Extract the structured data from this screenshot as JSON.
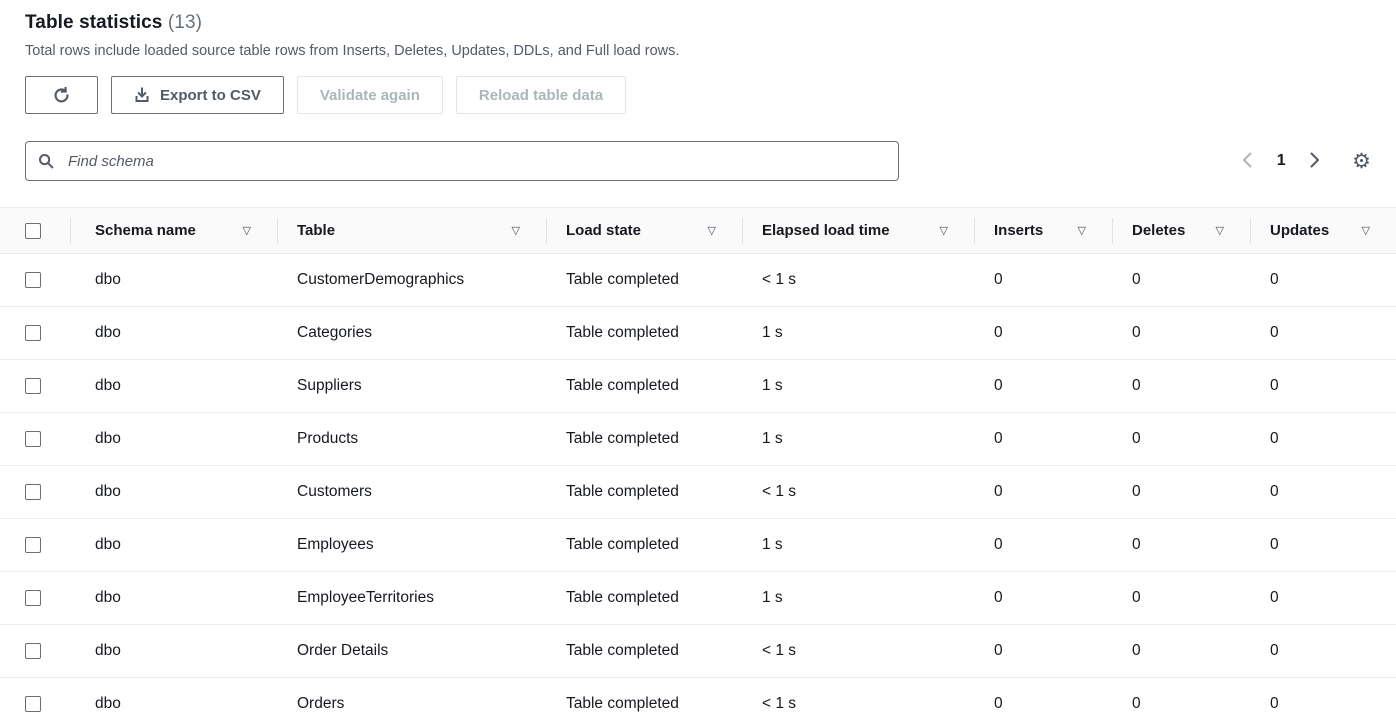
{
  "header": {
    "title": "Table statistics",
    "count": "(13)",
    "description": "Total rows include loaded source table rows from Inserts, Deletes, Updates, DDLs, and Full load rows."
  },
  "toolbar": {
    "export_label": "Export to CSV",
    "validate_label": "Validate again",
    "reload_label": "Reload table data"
  },
  "search": {
    "placeholder": "Find schema"
  },
  "pagination": {
    "current_page": "1"
  },
  "icons": {
    "settings": "⚙",
    "filter": "▽"
  },
  "table": {
    "columns": [
      {
        "label": "Schema name"
      },
      {
        "label": "Table"
      },
      {
        "label": "Load state"
      },
      {
        "label": "Elapsed load time"
      },
      {
        "label": "Inserts"
      },
      {
        "label": "Deletes"
      },
      {
        "label": "Updates"
      }
    ],
    "rows": [
      {
        "schema": "dbo",
        "table": "CustomerDemographics",
        "load_state": "Table completed",
        "elapsed": "< 1 s",
        "inserts": "0",
        "deletes": "0",
        "updates": "0"
      },
      {
        "schema": "dbo",
        "table": "Categories",
        "load_state": "Table completed",
        "elapsed": "1 s",
        "inserts": "0",
        "deletes": "0",
        "updates": "0"
      },
      {
        "schema": "dbo",
        "table": "Suppliers",
        "load_state": "Table completed",
        "elapsed": "1 s",
        "inserts": "0",
        "deletes": "0",
        "updates": "0"
      },
      {
        "schema": "dbo",
        "table": "Products",
        "load_state": "Table completed",
        "elapsed": "1 s",
        "inserts": "0",
        "deletes": "0",
        "updates": "0"
      },
      {
        "schema": "dbo",
        "table": "Customers",
        "load_state": "Table completed",
        "elapsed": "< 1 s",
        "inserts": "0",
        "deletes": "0",
        "updates": "0"
      },
      {
        "schema": "dbo",
        "table": "Employees",
        "load_state": "Table completed",
        "elapsed": "1 s",
        "inserts": "0",
        "deletes": "0",
        "updates": "0"
      },
      {
        "schema": "dbo",
        "table": "EmployeeTerritories",
        "load_state": "Table completed",
        "elapsed": "1 s",
        "inserts": "0",
        "deletes": "0",
        "updates": "0"
      },
      {
        "schema": "dbo",
        "table": "Order Details",
        "load_state": "Table completed",
        "elapsed": "< 1 s",
        "inserts": "0",
        "deletes": "0",
        "updates": "0"
      },
      {
        "schema": "dbo",
        "table": "Orders",
        "load_state": "Table completed",
        "elapsed": "< 1 s",
        "inserts": "0",
        "deletes": "0",
        "updates": "0"
      }
    ]
  },
  "colors": {
    "text": "#16191f",
    "secondary_text": "#545b64",
    "disabled_text": "#aab7b8",
    "border_light": "#eaeded",
    "control_border": "#687078"
  }
}
